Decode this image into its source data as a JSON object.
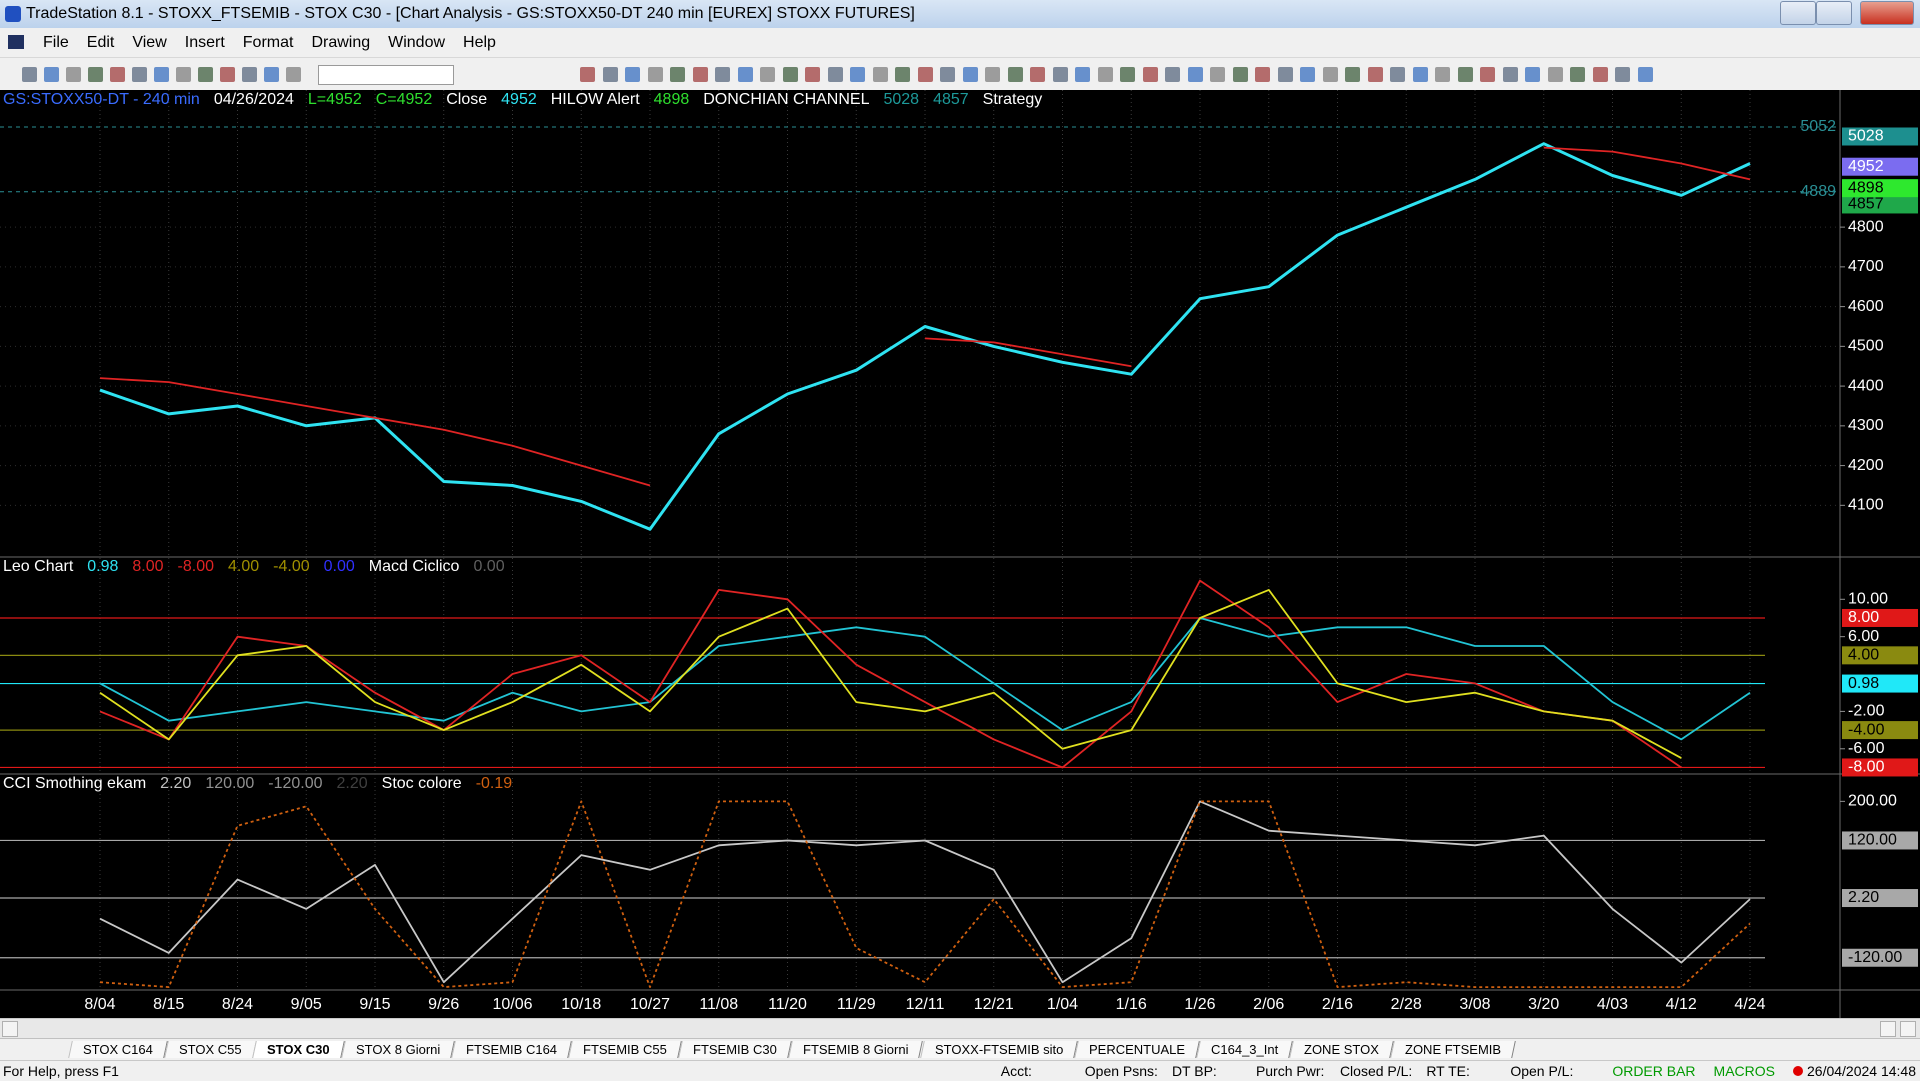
{
  "window": {
    "title": "TradeStation 8.1 - STOXX_FTSEMIB - STOX  C30 - [Chart Analysis - GS:STOXX50-DT  240 min  [EUREX] STOXX FUTURES]",
    "menu": [
      "File",
      "Edit",
      "View",
      "Insert",
      "Format",
      "Drawing",
      "Window",
      "Help"
    ]
  },
  "chart_data": [
    {
      "type": "line",
      "header": [
        {
          "text": "GS:STOXX50-DT - 240 min",
          "color": "#3a6cff"
        },
        {
          "text": "04/26/2024",
          "color": "#ffffff"
        },
        {
          "text": "L=4952",
          "color": "#2fe02f"
        },
        {
          "text": "C=4952",
          "color": "#2fe02f"
        },
        {
          "text": "Close",
          "color": "#ffffff"
        },
        {
          "text": "4952",
          "color": "#2fe3f2"
        },
        {
          "text": "HILOW Alert",
          "color": "#ffffff"
        },
        {
          "text": "4898",
          "color": "#2fe02f"
        },
        {
          "text": "DONCHIAN CHANNEL",
          "color": "#ffffff"
        },
        {
          "text": "5028",
          "color": "#1d9a9a"
        },
        {
          "text": "4857",
          "color": "#1d9a9a"
        },
        {
          "text": "Strategy",
          "color": "#ffffff"
        }
      ],
      "categories": [
        "8/04",
        "8/15",
        "8/24",
        "9/05",
        "9/15",
        "9/26",
        "10/06",
        "10/18",
        "10/27",
        "11/08",
        "11/20",
        "11/29",
        "12/11",
        "12/21",
        "1/04",
        "1/16",
        "1/26",
        "2/06",
        "2/16",
        "2/28",
        "3/08",
        "3/20",
        "4/03",
        "4/12",
        "4/24"
      ],
      "series": [
        {
          "color": "#2fe3f2",
          "values": [
            4390,
            4330,
            4350,
            4300,
            4320,
            4160,
            4150,
            4110,
            4040,
            4280,
            4380,
            4440,
            4550,
            4500,
            4460,
            4430,
            4620,
            4650,
            4780,
            4850,
            4920,
            5010,
            4930,
            4880,
            4960
          ]
        },
        {
          "color": "#e02424",
          "values": [
            4420,
            4410,
            4380,
            4350,
            4320,
            4290,
            4250,
            4200,
            4150,
            null,
            null,
            null,
            4520,
            4510,
            4480,
            4450,
            null,
            null,
            null,
            null,
            null,
            5000,
            4990,
            4960,
            4920
          ]
        }
      ],
      "ylim": [
        3970,
        5145
      ],
      "yticks": [
        4100,
        4200,
        4300,
        4400,
        4500,
        4600,
        4700,
        4800
      ],
      "grid": true,
      "markers": [
        {
          "value": 5052,
          "style": "text",
          "color": "#2a8f95"
        },
        {
          "value": 4889,
          "style": "text",
          "color": "#2a8f95"
        },
        {
          "value": 4857,
          "style": "box",
          "color": "#1fa84a",
          "text_color": "#000000"
        },
        {
          "value": 4898,
          "style": "box",
          "color": "#2ee82e",
          "text_color": "#000000"
        },
        {
          "value": 4952,
          "style": "box",
          "color": "#7b6cf0",
          "text_color": "#ffffff"
        },
        {
          "value": 5028,
          "style": "box",
          "color": "#1d8f8f",
          "text_color": "#ffffff"
        }
      ]
    },
    {
      "type": "line",
      "header": [
        {
          "text": "Leo Chart",
          "color": "#ffffff"
        },
        {
          "text": "0.98",
          "color": "#2fe3f2"
        },
        {
          "text": "8.00",
          "color": "#e02424"
        },
        {
          "text": "-8.00",
          "color": "#e02424"
        },
        {
          "text": "4.00",
          "color": "#a09000"
        },
        {
          "text": "-4.00",
          "color": "#a09000"
        },
        {
          "text": "0.00",
          "color": "#3030ff"
        },
        {
          "text": "Macd Ciclico",
          "color": "#ffffff"
        },
        {
          "text": "0.00",
          "color": "#606060"
        }
      ],
      "series": [
        {
          "color": "#22c4d4",
          "values": [
            1,
            -3,
            -2,
            -1,
            -2,
            -3,
            0,
            -2,
            -1,
            5,
            6,
            7,
            6,
            1,
            -4,
            -1,
            8,
            6,
            7,
            7,
            5,
            5,
            -1,
            -5,
            0
          ]
        },
        {
          "color": "#e02424",
          "values": [
            -2,
            -5,
            6,
            5,
            0,
            -4,
            2,
            4,
            -1,
            11,
            10,
            3,
            -1,
            -5,
            -8,
            -2,
            12,
            7,
            -1,
            2,
            1,
            -2,
            -3,
            -8,
            null
          ]
        },
        {
          "color": "#e0e020",
          "values": [
            0,
            -5,
            4,
            5,
            -1,
            -4,
            -1,
            3,
            -2,
            6,
            9,
            -1,
            -2,
            0,
            -6,
            -4,
            8,
            11,
            1,
            -1,
            0,
            -2,
            -3,
            -7,
            null
          ]
        }
      ],
      "ylim": [
        -8.7,
        12.6
      ],
      "yticks": [
        {
          "value": 10,
          "label": "10.00"
        },
        {
          "value": 6,
          "label": "6.00"
        },
        {
          "value": -2,
          "label": "-2.00"
        },
        {
          "value": -6,
          "label": "-6.00"
        }
      ],
      "levels": [
        {
          "value": 8,
          "label": "8.00",
          "color": "#e01818",
          "text_color": "#ffffff"
        },
        {
          "value": 4,
          "label": "4.00",
          "color": "#8a8a10",
          "text_color": "#000000"
        },
        {
          "value": -4,
          "label": "-4.00",
          "color": "#8a8a10",
          "text_color": "#000000"
        },
        {
          "value": -8,
          "label": "-8.00",
          "color": "#e01818",
          "text_color": "#ffffff"
        },
        {
          "value": 0.98,
          "label": "0.98",
          "color": "#20e8f8",
          "text_color": "#000000"
        }
      ]
    },
    {
      "type": "line",
      "header": [
        {
          "text": "CCI Smothing ekam",
          "color": "#ffffff"
        },
        {
          "text": "2.20",
          "color": "#c0c0c0"
        },
        {
          "text": "120.00",
          "color": "#909090"
        },
        {
          "text": "-120.00",
          "color": "#909090"
        },
        {
          "text": "2.20",
          "color": "#404040"
        },
        {
          "text": "Stoc colore",
          "color": "#ffffff"
        },
        {
          "text": "-0.19",
          "color": "#d06010"
        }
      ],
      "series": [
        {
          "color": "#c8c8c8",
          "values": [
            -40,
            -110,
            40,
            -20,
            70,
            -170,
            -40,
            90,
            60,
            110,
            120,
            110,
            120,
            60,
            -170,
            -80,
            200,
            140,
            130,
            120,
            110,
            130,
            -20,
            -130,
            0
          ]
        },
        {
          "color": "#d06010",
          "dashed": true,
          "values": [
            -170,
            -180,
            150,
            190,
            -20,
            -180,
            -170,
            200,
            -180,
            200,
            200,
            -100,
            -170,
            0,
            -180,
            -170,
            200,
            200,
            -180,
            -170,
            -180,
            -180,
            -180,
            -180,
            -50
          ]
        }
      ],
      "ylim": [
        -186,
        256
      ],
      "yticks": [
        {
          "value": 200,
          "label": "200.00"
        }
      ],
      "levels": [
        {
          "value": 120,
          "label": "120.00",
          "color": "#a8a8a8",
          "text_color": "#000000"
        },
        {
          "value": 2.2,
          "label": "2.20",
          "color": "#a8a8a8",
          "text_color": "#000000"
        },
        {
          "value": -120,
          "label": "-120.00",
          "color": "#a8a8a8",
          "text_color": "#000000"
        }
      ]
    }
  ],
  "tabs": [
    "STOX C164",
    "STOX C55",
    "STOX C30",
    "STOX 8 Giorni",
    "FTSEMIB C164",
    "FTSEMIB C55",
    "FTSEMIB C30",
    "FTSEMIB 8 Giorni",
    "STOXX-FTSEMIB sito",
    "PERCENTUALE",
    "C164_3_Int",
    "ZONE STOX",
    "ZONE FTSEMIB"
  ],
  "status": {
    "help": "For Help, press F1",
    "fields": [
      "Acct:",
      "Open Psns:",
      "DT BP:",
      "Purch Pwr:",
      "Closed P/L:",
      "RT TE:",
      "Open P/L:"
    ],
    "order_bar": "ORDER BAR",
    "macros": "MACROS",
    "datetime": "26/04/2024 14:48"
  }
}
